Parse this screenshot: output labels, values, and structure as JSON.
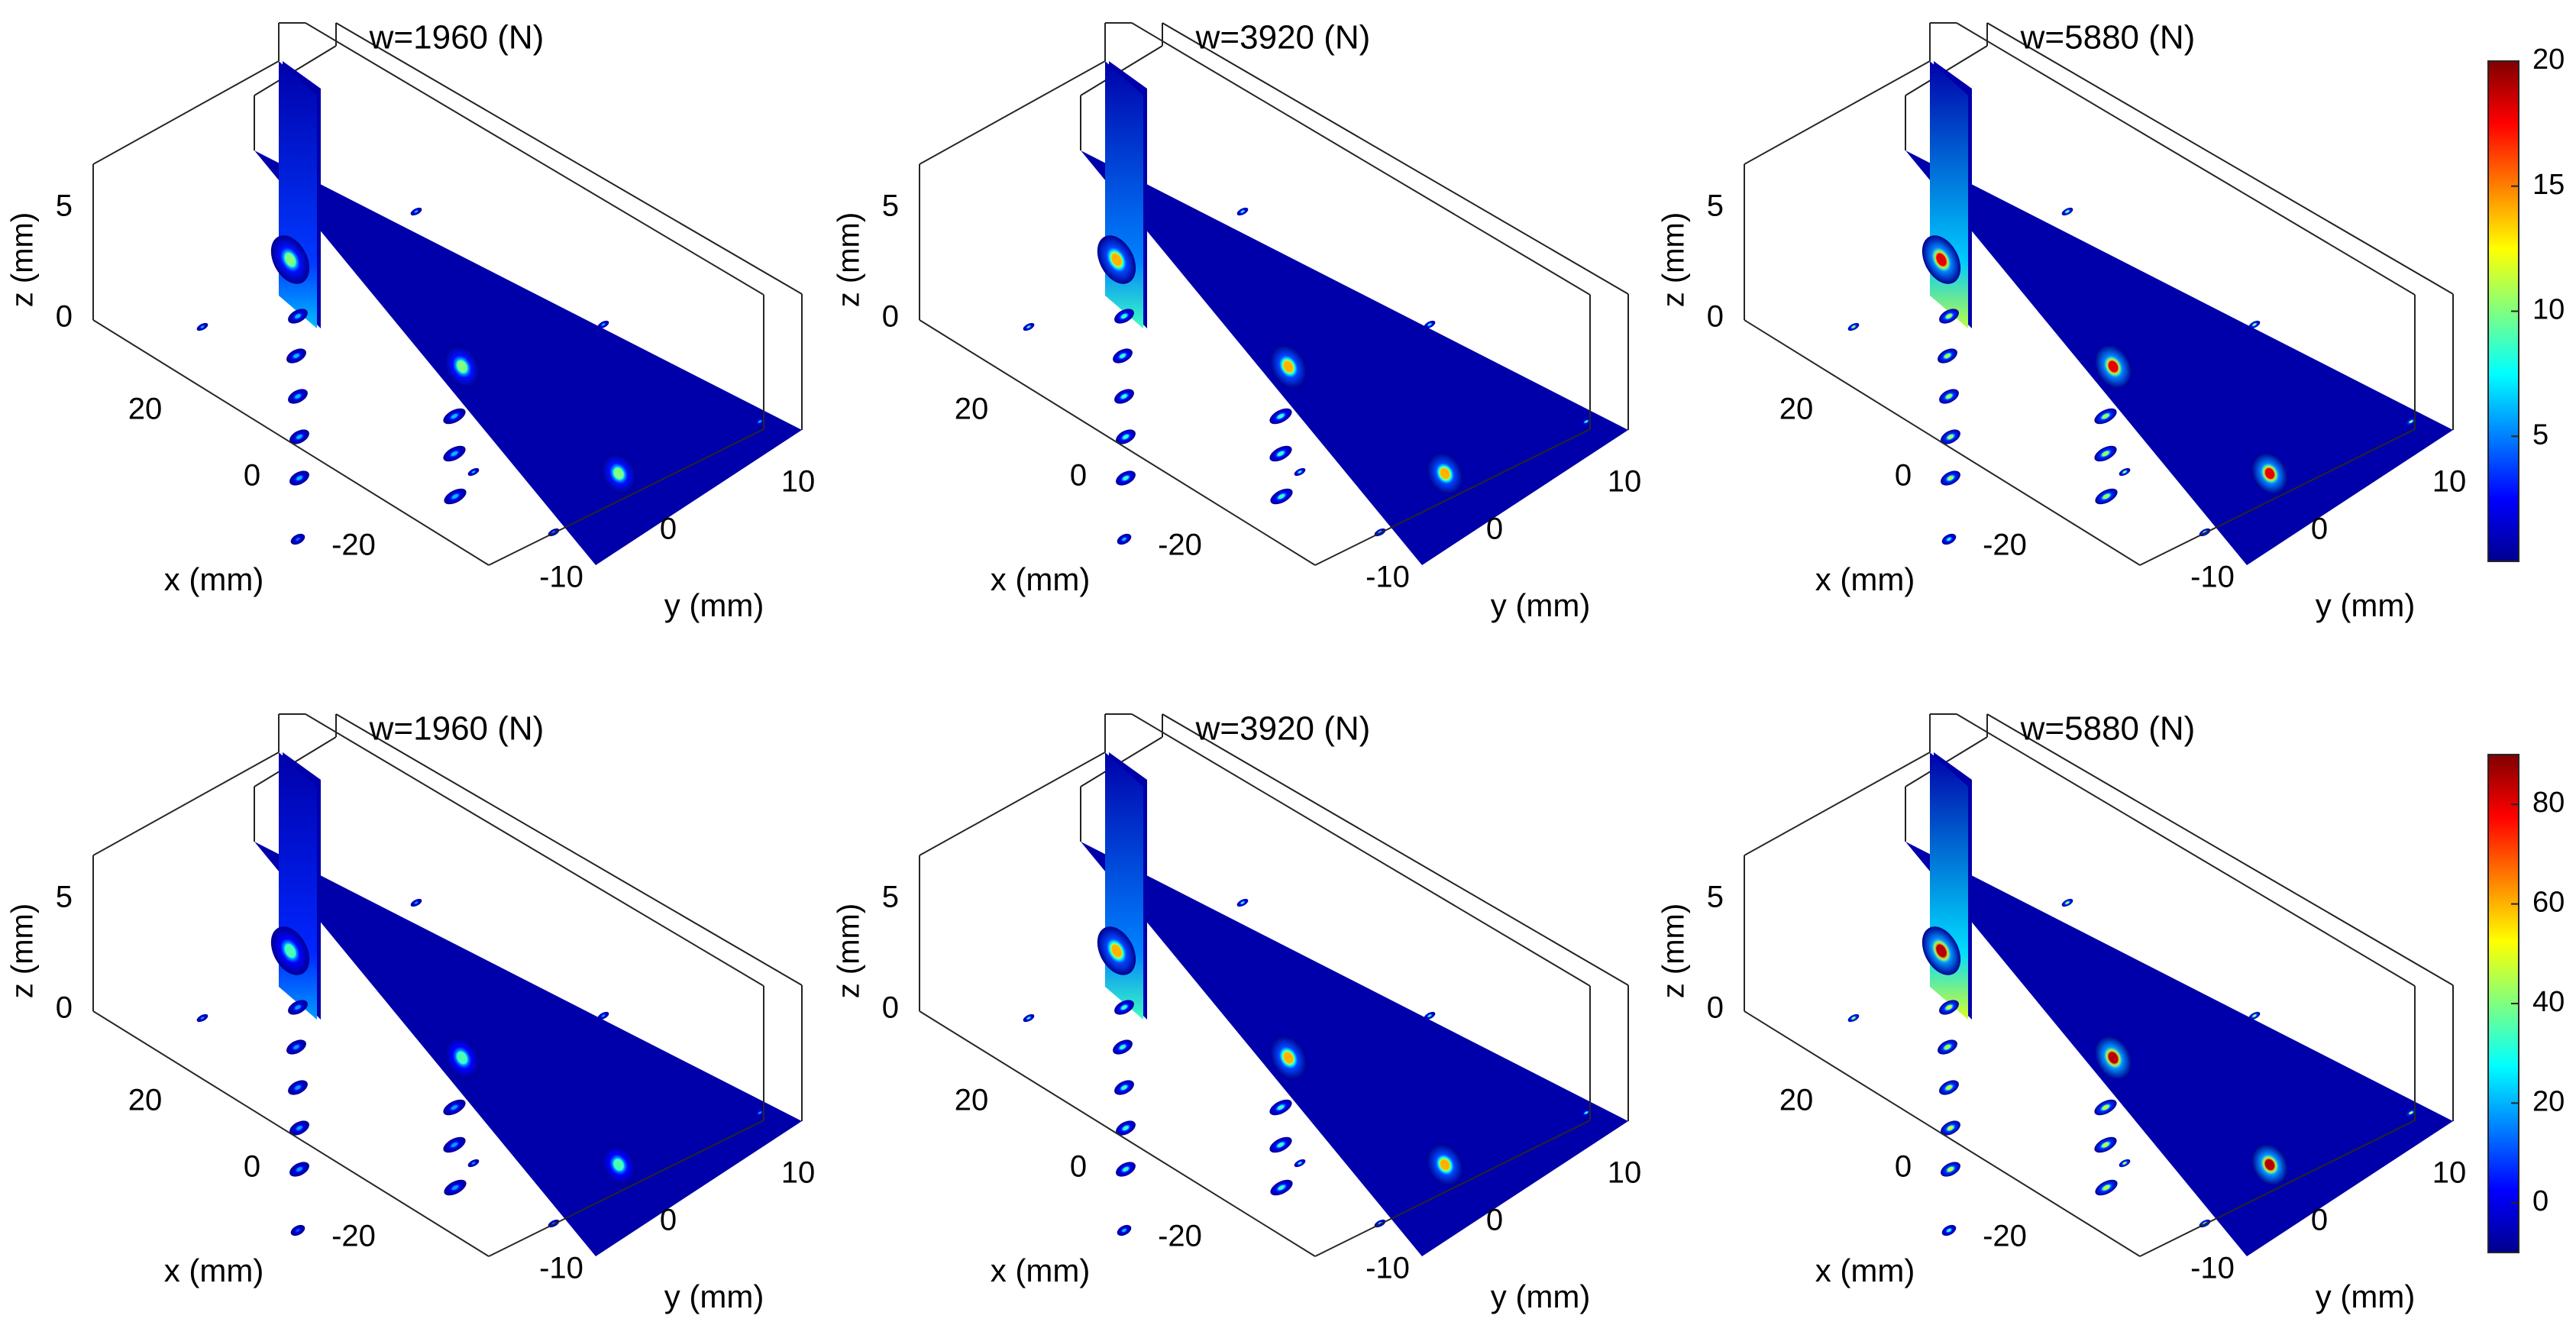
{
  "figure": {
    "rows": 2,
    "cols": 3
  },
  "chart_data": [
    {
      "type": "heatmap",
      "title": "w=1960 (N)",
      "xlabel": "x (mm)",
      "ylabel": "y (mm)",
      "zlabel": "z (mm)",
      "x_ticks": [
        "20",
        "0",
        "-20"
      ],
      "y_ticks": [
        "-10",
        "0",
        "10"
      ],
      "z_ticks": [
        "0",
        "5"
      ],
      "load_N": 1960,
      "peak": 10,
      "colorbar": 0
    },
    {
      "type": "heatmap",
      "title": "w=3920 (N)",
      "xlabel": "x (mm)",
      "ylabel": "y (mm)",
      "zlabel": "z (mm)",
      "x_ticks": [
        "20",
        "0",
        "-20"
      ],
      "y_ticks": [
        "-10",
        "0",
        "10"
      ],
      "z_ticks": [
        "0",
        "5"
      ],
      "load_N": 3920,
      "peak": 14,
      "colorbar": 0
    },
    {
      "type": "heatmap",
      "title": "w=5880 (N)",
      "xlabel": "x (mm)",
      "ylabel": "y (mm)",
      "zlabel": "z (mm)",
      "x_ticks": [
        "20",
        "0",
        "-20"
      ],
      "y_ticks": [
        "-10",
        "0",
        "10"
      ],
      "z_ticks": [
        "0",
        "5"
      ],
      "load_N": 5880,
      "peak": 18,
      "colorbar": 0
    },
    {
      "type": "heatmap",
      "title": "w=1960 (N)",
      "xlabel": "x (mm)",
      "ylabel": "y (mm)",
      "zlabel": "z (mm)",
      "x_ticks": [
        "20",
        "0",
        "-20"
      ],
      "y_ticks": [
        "-10",
        "0",
        "10"
      ],
      "z_ticks": [
        "0",
        "5"
      ],
      "load_N": 1960,
      "peak": 35,
      "colorbar": 1
    },
    {
      "type": "heatmap",
      "title": "w=3920 (N)",
      "xlabel": "x (mm)",
      "ylabel": "y (mm)",
      "zlabel": "z (mm)",
      "x_ticks": [
        "20",
        "0",
        "-20"
      ],
      "y_ticks": [
        "-10",
        "0",
        "10"
      ],
      "z_ticks": [
        "0",
        "5"
      ],
      "load_N": 3920,
      "peak": 60,
      "colorbar": 1
    },
    {
      "type": "heatmap",
      "title": "w=5880 (N)",
      "xlabel": "x (mm)",
      "ylabel": "y (mm)",
      "zlabel": "z (mm)",
      "x_ticks": [
        "20",
        "0",
        "-20"
      ],
      "y_ticks": [
        "-10",
        "0",
        "10"
      ],
      "z_ticks": [
        "0",
        "5"
      ],
      "load_N": 5880,
      "peak": 85,
      "colorbar": 1
    }
  ],
  "colorbars": [
    {
      "min": 0,
      "max": 20,
      "ticks": [
        5,
        10,
        15,
        20
      ],
      "labels": [
        "5",
        "10",
        "15",
        "20"
      ]
    },
    {
      "min": -10,
      "max": 90,
      "ticks": [
        0,
        20,
        40,
        60,
        80
      ],
      "labels": [
        "0",
        "20",
        "40",
        "60",
        "80"
      ]
    }
  ],
  "colormap": "jet",
  "jet_stops": [
    "#00008f",
    "#0000ff",
    "#00ffff",
    "#ffff00",
    "#ff0000",
    "#800000"
  ]
}
